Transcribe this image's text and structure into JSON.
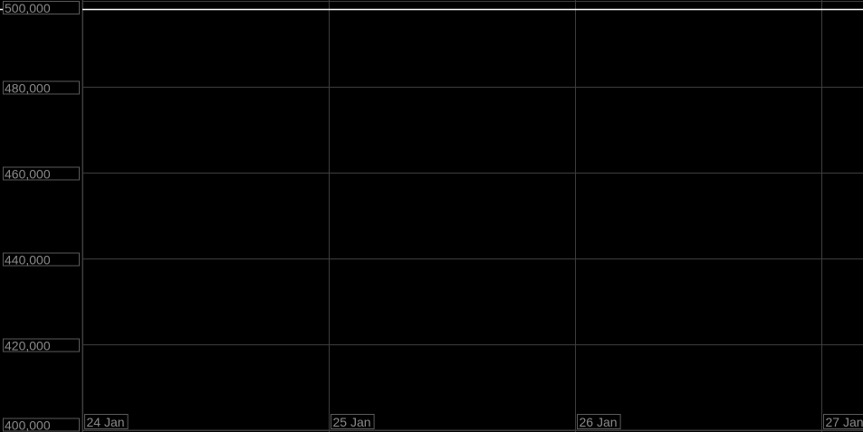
{
  "chart_data": {
    "type": "line",
    "title": "",
    "xlabel": "",
    "ylabel": "",
    "ylim": [
      400000,
      500000
    ],
    "xlim": [
      "2024-01-24T00:00",
      "2024-01-27T04:00"
    ],
    "yticks": [
      500000,
      480000,
      460000,
      440000,
      420000,
      400000
    ],
    "ytick_labels": [
      "500,000",
      "480,000",
      "460,000",
      "440,000",
      "420,000",
      "400,000"
    ],
    "xticks": [
      "24 Jan",
      "25 Jan",
      "26 Jan",
      "27 Jan"
    ],
    "grid": true,
    "colors": {
      "background": "#000000",
      "line": "#ffffff",
      "grid": "#3e3e3e",
      "label": "#8a8a8a"
    },
    "series": [
      {
        "x": [
          "24 Jan",
          "27 Jan 04:00"
        ],
        "values": [
          498000,
          498000
        ]
      }
    ]
  }
}
